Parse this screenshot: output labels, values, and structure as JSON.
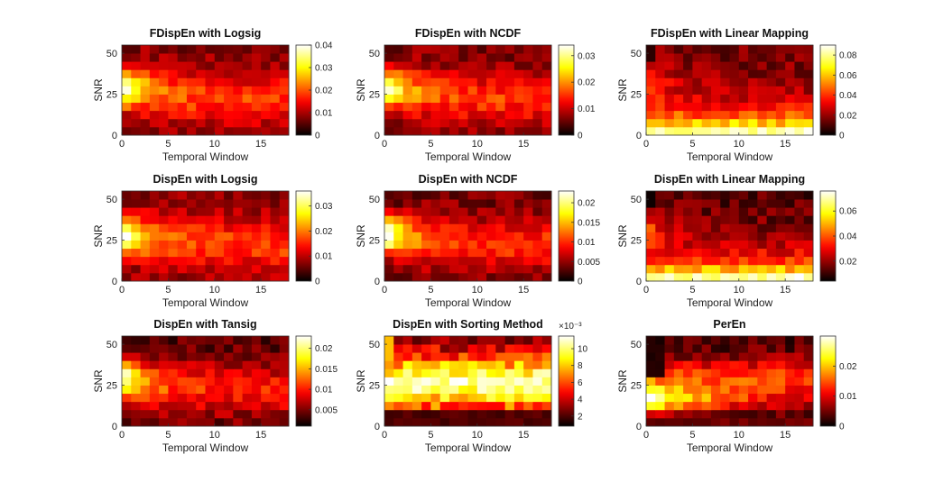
{
  "figure": {
    "background": "#ffffff",
    "colormap": "hot"
  },
  "chart_data": [
    {
      "type": "heatmap",
      "title": "FDispEn with Logsig",
      "xlabel": "Temporal Window",
      "ylabel": "SNR",
      "xticks": [
        0,
        5,
        10,
        15
      ],
      "yticks": [
        0,
        25,
        50
      ],
      "xlim": [
        0,
        18
      ],
      "ylim": [
        0,
        55
      ],
      "cbar_ticks": [
        "0",
        "0.01",
        "0.02",
        "0.03",
        "0.04"
      ],
      "cbar_tick_values": [
        0,
        0.01,
        0.02,
        0.03,
        0.04
      ],
      "cbar_lim": [
        0,
        0.04
      ],
      "cbar_exponent": "",
      "vrange": [
        0.003,
        0.04
      ],
      "pattern": "left_hot_mid",
      "seed": 11
    },
    {
      "type": "heatmap",
      "title": "FDispEn with NCDF",
      "xlabel": "Temporal Window",
      "ylabel": "SNR",
      "xticks": [
        0,
        5,
        10,
        15
      ],
      "yticks": [
        0,
        25,
        50
      ],
      "xlim": [
        0,
        18
      ],
      "ylim": [
        0,
        55
      ],
      "cbar_ticks": [
        "0",
        "0.01",
        "0.02",
        "0.03"
      ],
      "cbar_tick_values": [
        0,
        0.01,
        0.02,
        0.03
      ],
      "cbar_lim": [
        0,
        0.034
      ],
      "cbar_exponent": "",
      "vrange": [
        0.002,
        0.034
      ],
      "pattern": "left_hot_mid",
      "seed": 23
    },
    {
      "type": "heatmap",
      "title": "FDispEn with Linear Mapping",
      "xlabel": "Temporal Window",
      "ylabel": "SNR",
      "xticks": [
        0,
        5,
        10,
        15
      ],
      "yticks": [
        0,
        25,
        50
      ],
      "xlim": [
        0,
        18
      ],
      "ylim": [
        0,
        55
      ],
      "cbar_ticks": [
        "0",
        "0.02",
        "0.04",
        "0.06",
        "0.08"
      ],
      "cbar_tick_values": [
        0,
        0.02,
        0.04,
        0.06,
        0.08
      ],
      "cbar_lim": [
        0,
        0.09
      ],
      "cbar_exponent": "",
      "vrange": [
        0.004,
        0.09
      ],
      "pattern": "bottom_hot",
      "seed": 37
    },
    {
      "type": "heatmap",
      "title": "DispEn with Logsig",
      "xlabel": "Temporal Window",
      "ylabel": "SNR",
      "xticks": [
        0,
        5,
        10,
        15
      ],
      "yticks": [
        0,
        25,
        50
      ],
      "xlim": [
        0,
        18
      ],
      "ylim": [
        0,
        55
      ],
      "cbar_ticks": [
        "0",
        "0.01",
        "0.02",
        "0.03"
      ],
      "cbar_tick_values": [
        0,
        0.01,
        0.02,
        0.03
      ],
      "cbar_lim": [
        0,
        0.036
      ],
      "cbar_exponent": "",
      "vrange": [
        0.003,
        0.036
      ],
      "pattern": "left_hot_mid",
      "seed": 41
    },
    {
      "type": "heatmap",
      "title": "DispEn with NCDF",
      "xlabel": "Temporal Window",
      "ylabel": "SNR",
      "xticks": [
        0,
        5,
        10,
        15
      ],
      "yticks": [
        0,
        25,
        50
      ],
      "xlim": [
        0,
        18
      ],
      "ylim": [
        0,
        55
      ],
      "cbar_ticks": [
        "0",
        "0.005",
        "0.01",
        "0.015",
        "0.02"
      ],
      "cbar_tick_values": [
        0,
        0.005,
        0.01,
        0.015,
        0.02
      ],
      "cbar_lim": [
        0,
        0.023
      ],
      "cbar_exponent": "",
      "vrange": [
        0.001,
        0.023
      ],
      "pattern": "left_hot_mid",
      "seed": 53
    },
    {
      "type": "heatmap",
      "title": "DispEn with Linear Mapping",
      "xlabel": "Temporal Window",
      "ylabel": "SNR",
      "xticks": [
        0,
        5,
        10,
        15
      ],
      "yticks": [
        0,
        25,
        50
      ],
      "xlim": [
        0,
        18
      ],
      "ylim": [
        0,
        55
      ],
      "cbar_ticks": [
        "0.02",
        "0.04",
        "0.06"
      ],
      "cbar_tick_values": [
        0.02,
        0.04,
        0.06
      ],
      "cbar_lim": [
        0.004,
        0.076
      ],
      "cbar_exponent": "",
      "vrange": [
        0.004,
        0.076
      ],
      "pattern": "bottom_hot",
      "seed": 67
    },
    {
      "type": "heatmap",
      "title": "DispEn with Tansig",
      "xlabel": "Temporal Window",
      "ylabel": "SNR",
      "xticks": [
        0,
        5,
        10,
        15
      ],
      "yticks": [
        0,
        25,
        50
      ],
      "xlim": [
        0,
        18
      ],
      "ylim": [
        0,
        55
      ],
      "cbar_ticks": [
        "0.005",
        "0.01",
        "0.015",
        "0.02"
      ],
      "cbar_tick_values": [
        0.005,
        0.01,
        0.015,
        0.02
      ],
      "cbar_lim": [
        0.001,
        0.023
      ],
      "cbar_exponent": "",
      "vrange": [
        0.001,
        0.023
      ],
      "pattern": "left_hot_mid",
      "seed": 71
    },
    {
      "type": "heatmap",
      "title": "DispEn with Sorting Method",
      "xlabel": "Temporal Window",
      "ylabel": "SNR",
      "xticks": [
        0,
        5,
        10,
        15
      ],
      "yticks": [
        0,
        25,
        50
      ],
      "xlim": [
        0,
        18
      ],
      "ylim": [
        0,
        55
      ],
      "cbar_ticks": [
        "2",
        "4",
        "6",
        "8",
        "10"
      ],
      "cbar_tick_values": [
        2,
        4,
        6,
        8,
        10
      ],
      "cbar_lim": [
        0.8,
        11.5
      ],
      "cbar_exponent": "×10⁻³",
      "vrange": [
        0.8,
        11.5
      ],
      "pattern": "broad_hot",
      "seed": 83
    },
    {
      "type": "heatmap",
      "title": "PerEn",
      "xlabel": "Temporal Window",
      "ylabel": "SNR",
      "xticks": [
        0,
        5,
        10,
        15
      ],
      "yticks": [
        0,
        25,
        50
      ],
      "xlim": [
        0,
        18
      ],
      "ylim": [
        0,
        55
      ],
      "cbar_ticks": [
        "0",
        "0.01",
        "0.02"
      ],
      "cbar_tick_values": [
        0,
        0.01,
        0.02
      ],
      "cbar_lim": [
        0,
        0.03
      ],
      "cbar_exponent": "",
      "vrange": [
        0.0,
        0.03
      ],
      "pattern": "low_band_hot",
      "seed": 97
    }
  ]
}
